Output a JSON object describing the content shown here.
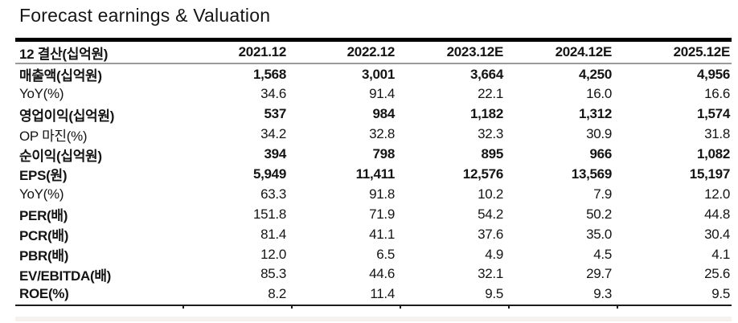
{
  "title": "Forecast earnings & Valuation",
  "colors": {
    "text": "#141414",
    "top_bar": "#000000",
    "header_underline": "#9a9a9a",
    "bottom_border": "#1c1c1c",
    "background": "#ffffff"
  },
  "table": {
    "header": {
      "label": "12 결산(십억원)",
      "columns": [
        "2021.12",
        "2022.12",
        "2023.12E",
        "2024.12E",
        "2025.12E"
      ]
    },
    "rows": [
      {
        "label": "매출액(십억원)",
        "cells": [
          "1,568",
          "3,001",
          "3,664",
          "4,250",
          "4,956"
        ]
      },
      {
        "label": "YoY(%)",
        "cells": [
          "34.6",
          "91.4",
          "22.1",
          "16.0",
          "16.6"
        ]
      },
      {
        "label": "영업이익(십억원)",
        "cells": [
          "537",
          "984",
          "1,182",
          "1,312",
          "1,574"
        ]
      },
      {
        "label": "OP 마진(%)",
        "cells": [
          "34.2",
          "32.8",
          "32.3",
          "30.9",
          "31.8"
        ]
      },
      {
        "label": "순이익(십억원)",
        "cells": [
          "394",
          "798",
          "895",
          "966",
          "1,082"
        ]
      },
      {
        "label": "EPS(원)",
        "cells": [
          "5,949",
          "11,411",
          "12,576",
          "13,569",
          "15,197"
        ]
      },
      {
        "label": "YoY(%)",
        "cells": [
          "63.3",
          "91.8",
          "10.2",
          "7.9",
          "12.0"
        ]
      },
      {
        "label": "PER(배)",
        "cells": [
          "151.8",
          "71.9",
          "54.2",
          "50.2",
          "44.8"
        ]
      },
      {
        "label": "PCR(배)",
        "cells": [
          "81.4",
          "41.1",
          "37.6",
          "35.0",
          "30.4"
        ]
      },
      {
        "label": "PBR(배)",
        "cells": [
          "12.0",
          "6.5",
          "4.9",
          "4.5",
          "4.1"
        ]
      },
      {
        "label": "EV/EBITDA(배)",
        "cells": [
          "85.3",
          "44.6",
          "32.1",
          "29.7",
          "25.6"
        ]
      },
      {
        "label": "ROE(%)",
        "cells": [
          "8.2",
          "11.4",
          "9.5",
          "9.3",
          "9.5"
        ]
      }
    ]
  }
}
